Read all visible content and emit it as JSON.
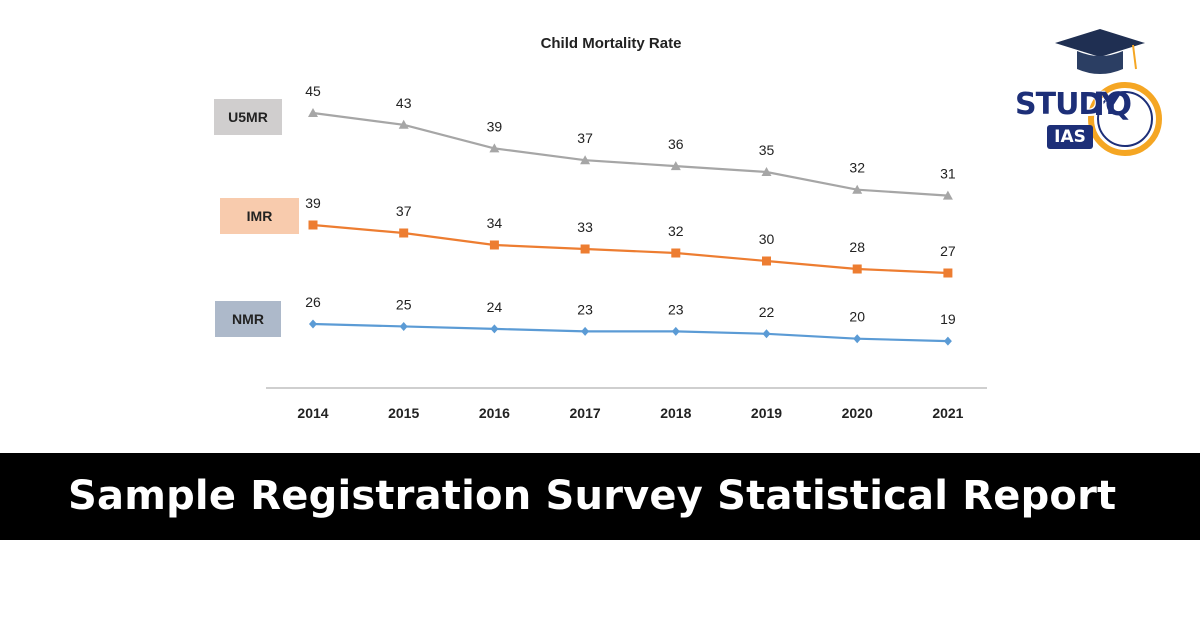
{
  "chart_data": {
    "type": "line",
    "title": "Child Mortality Rate",
    "categories": [
      "2014",
      "2015",
      "2016",
      "2017",
      "2018",
      "2019",
      "2020",
      "2021"
    ],
    "series": [
      {
        "name": "U5MR",
        "values": [
          45,
          43,
          39,
          37,
          36,
          35,
          32,
          31
        ],
        "color": "#a6a6a6",
        "legend_bg": "#d0cece",
        "marker": "triangle"
      },
      {
        "name": "IMR",
        "values": [
          39,
          37,
          34,
          33,
          32,
          30,
          28,
          27
        ],
        "color": "#ed7d31",
        "legend_bg": "#f8cbad",
        "marker": "square"
      },
      {
        "name": "NMR",
        "values": [
          26,
          25,
          24,
          23,
          23,
          22,
          20,
          19
        ],
        "color": "#5b9bd5",
        "legend_bg": "#adb9ca",
        "marker": "diamond"
      }
    ],
    "xlabel": "",
    "ylabel": "",
    "grid": false,
    "legend": "left"
  },
  "banner": {
    "text": "Sample Registration Survey Statistical Report"
  },
  "logo": {
    "study": "STUDY",
    "iq": "IQ",
    "ias": "IAS",
    "primary_color": "#1d2f78",
    "accent_color": "#f5a623"
  }
}
